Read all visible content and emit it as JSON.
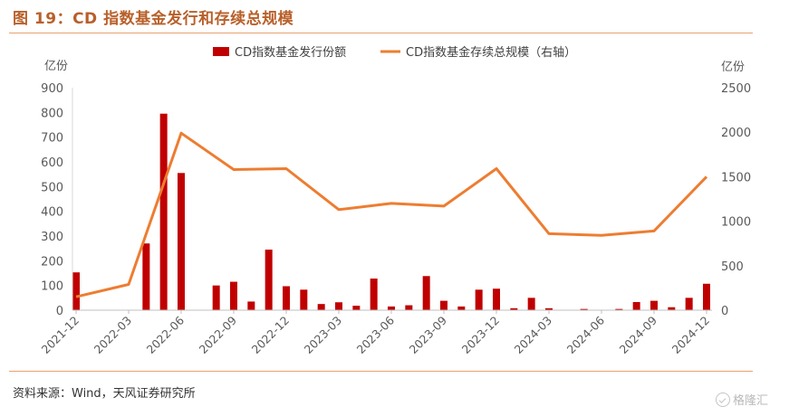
{
  "header": {
    "title": "图 19：CD 指数基金发行和存续总规模"
  },
  "footer": {
    "source": "资料来源：Wind，天风证券研究所",
    "watermark": "格隆汇"
  },
  "colors": {
    "bar": "#c00000",
    "line": "#ed7d31",
    "title": "#b8602a",
    "rule": "#e8a070"
  },
  "chart_data": {
    "type": "bar",
    "title": "",
    "left_axis": {
      "unit_label": "亿份",
      "ylim": [
        0,
        900
      ],
      "ticks": [
        0,
        100,
        200,
        300,
        400,
        500,
        600,
        700,
        800,
        900
      ]
    },
    "right_axis": {
      "unit_label": "亿份",
      "ylim": [
        0,
        2500
      ],
      "ticks": [
        0,
        500,
        1000,
        1500,
        2000,
        2500
      ]
    },
    "legend": {
      "placement": "top-center"
    },
    "x_ticks": [
      "2021-12",
      "2022-03",
      "2022-06",
      "2022-09",
      "2022-12",
      "2023-03",
      "2023-06",
      "2023-09",
      "2023-12",
      "2024-03",
      "2024-06",
      "2024-09",
      "2024-12"
    ],
    "months": [
      "2021-12",
      "2022-01",
      "2022-02",
      "2022-03",
      "2022-04",
      "2022-05",
      "2022-06",
      "2022-07",
      "2022-08",
      "2022-09",
      "2022-10",
      "2022-11",
      "2022-12",
      "2023-01",
      "2023-02",
      "2023-03",
      "2023-04",
      "2023-05",
      "2023-06",
      "2023-07",
      "2023-08",
      "2023-09",
      "2023-10",
      "2023-11",
      "2023-12",
      "2024-01",
      "2024-02",
      "2024-03",
      "2024-04",
      "2024-05",
      "2024-06",
      "2024-07",
      "2024-08",
      "2024-09",
      "2024-10",
      "2024-11",
      "2024-12"
    ],
    "series": [
      {
        "name": "CD指数基金发行份额",
        "type": "bar",
        "axis": "left",
        "values": [
          153,
          0,
          0,
          0,
          270,
          795,
          555,
          0,
          100,
          115,
          35,
          245,
          97,
          83,
          25,
          32,
          18,
          128,
          15,
          20,
          138,
          38,
          15,
          83,
          87,
          8,
          50,
          8,
          0,
          5,
          0,
          5,
          33,
          38,
          12,
          50,
          107
        ]
      },
      {
        "name": "CD指数基金存续总规模（右轴）",
        "type": "line",
        "axis": "right",
        "points": [
          {
            "x": "2021-12",
            "y": 150
          },
          {
            "x": "2022-03",
            "y": 290
          },
          {
            "x": "2022-06",
            "y": 1990
          },
          {
            "x": "2022-09",
            "y": 1580
          },
          {
            "x": "2022-12",
            "y": 1590
          },
          {
            "x": "2023-03",
            "y": 1130
          },
          {
            "x": "2023-06",
            "y": 1200
          },
          {
            "x": "2023-09",
            "y": 1170
          },
          {
            "x": "2023-12",
            "y": 1590
          },
          {
            "x": "2024-03",
            "y": 860
          },
          {
            "x": "2024-06",
            "y": 840
          },
          {
            "x": "2024-09",
            "y": 890
          },
          {
            "x": "2024-12",
            "y": 1500
          }
        ]
      }
    ]
  }
}
